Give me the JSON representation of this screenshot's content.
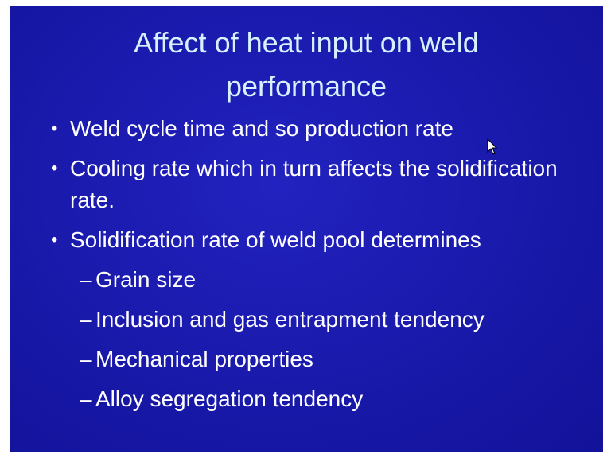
{
  "title": "Affect of heat input on weld performance",
  "bullets": [
    {
      "text": "Weld cycle time and so production rate"
    },
    {
      "text": "Cooling rate which in turn affects the solidification rate."
    },
    {
      "text": "Solidification rate of weld pool determines",
      "sub": [
        "Grain size",
        "Inclusion and gas entrapment tendency",
        "Mechanical properties",
        "Alloy segregation tendency"
      ]
    }
  ]
}
